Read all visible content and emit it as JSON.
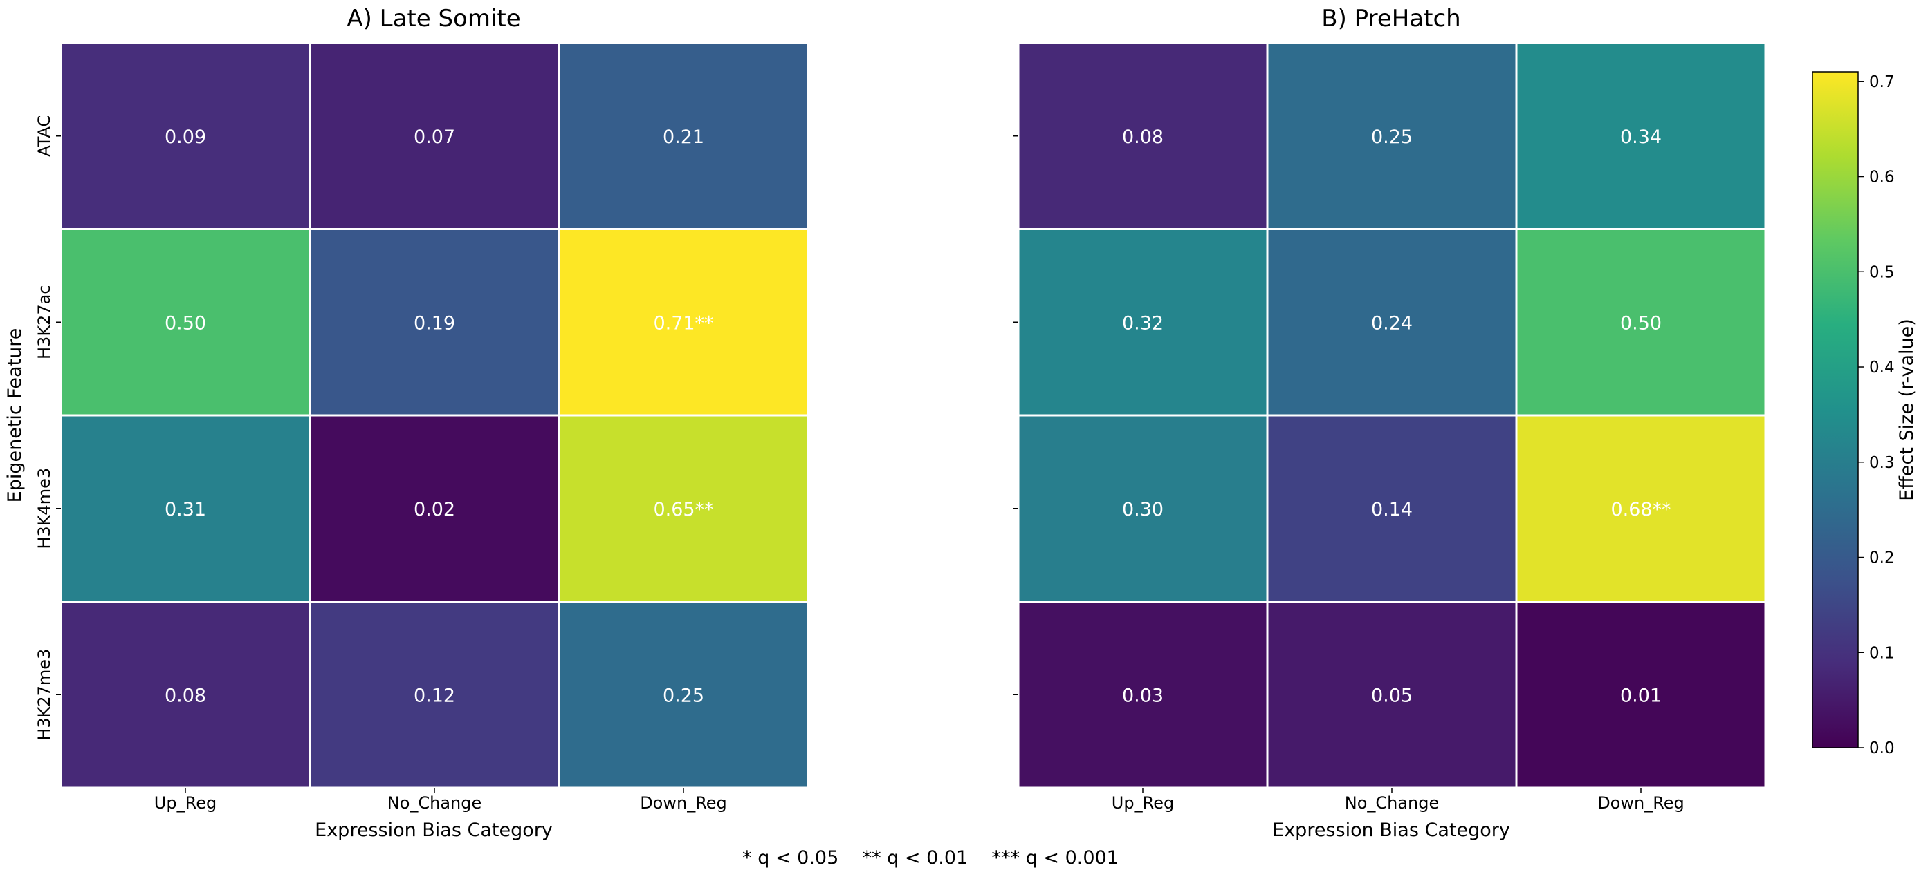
{
  "chart_data": [
    {
      "type": "heatmap",
      "title": "A) Late Somite",
      "xlabel": "Expression Bias Category",
      "ylabel": "Epigenetic Feature",
      "x_categories": [
        "Up_Reg",
        "No_Change",
        "Down_Reg"
      ],
      "y_categories": [
        "ATAC",
        "H3K27ac",
        "H3K4me3",
        "H3K27me3"
      ],
      "values": [
        [
          0.09,
          0.07,
          0.21
        ],
        [
          0.5,
          0.19,
          0.71
        ],
        [
          0.31,
          0.02,
          0.65
        ],
        [
          0.08,
          0.12,
          0.25
        ]
      ],
      "annotations": [
        [
          "0.09",
          "0.07",
          "0.21"
        ],
        [
          "0.50",
          "0.19",
          "0.71**"
        ],
        [
          "0.31",
          "0.02",
          "0.65**"
        ],
        [
          "0.08",
          "0.12",
          "0.25"
        ]
      ]
    },
    {
      "type": "heatmap",
      "title": "B) PreHatch",
      "xlabel": "Expression Bias Category",
      "ylabel": "",
      "x_categories": [
        "Up_Reg",
        "No_Change",
        "Down_Reg"
      ],
      "y_categories": [
        "ATAC",
        "H3K27ac",
        "H3K4me3",
        "H3K27me3"
      ],
      "values": [
        [
          0.08,
          0.25,
          0.34
        ],
        [
          0.32,
          0.24,
          0.5
        ],
        [
          0.3,
          0.14,
          0.68
        ],
        [
          0.03,
          0.05,
          0.01
        ]
      ],
      "annotations": [
        [
          "0.08",
          "0.25",
          "0.34"
        ],
        [
          "0.32",
          "0.24",
          "0.50"
        ],
        [
          "0.30",
          "0.14",
          "0.68**"
        ],
        [
          "0.03",
          "0.05",
          "0.01"
        ]
      ]
    }
  ],
  "colorbar": {
    "label": "Effect Size (r-value)",
    "range": [
      0.0,
      0.71
    ],
    "ticks": [
      "0.0",
      "0.1",
      "0.2",
      "0.3",
      "0.4",
      "0.5",
      "0.6",
      "0.7"
    ],
    "colormap": "viridis"
  },
  "footnote": "* q < 0.05    ** q < 0.01    *** q < 0.001"
}
